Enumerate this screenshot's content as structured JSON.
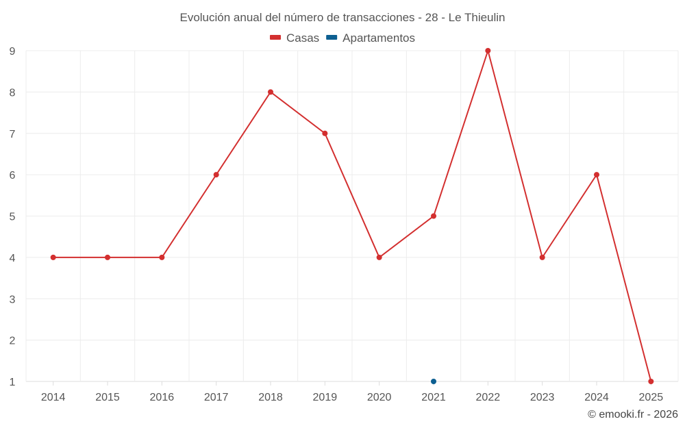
{
  "chart_data": {
    "type": "line",
    "title": "Evolución anual del número de transacciones - 28 - Le Thieulin",
    "categories": [
      "2014",
      "2015",
      "2016",
      "2017",
      "2018",
      "2019",
      "2020",
      "2021",
      "2022",
      "2023",
      "2024",
      "2025"
    ],
    "series": [
      {
        "name": "Casas",
        "color": "#d32f2f",
        "values": [
          4,
          4,
          4,
          6,
          8,
          7,
          4,
          5,
          9,
          4,
          6,
          1
        ]
      },
      {
        "name": "Apartamentos",
        "color": "#0d5f91",
        "values": [
          null,
          null,
          null,
          null,
          null,
          null,
          null,
          1,
          null,
          null,
          null,
          null
        ]
      }
    ],
    "ylim": [
      1,
      9
    ],
    "yticks": [
      1,
      2,
      3,
      4,
      5,
      6,
      7,
      8,
      9
    ],
    "xlabel": "",
    "ylabel": "",
    "grid": true,
    "legend_position": "top-center"
  },
  "credit": "© emooki.fr - 2026"
}
